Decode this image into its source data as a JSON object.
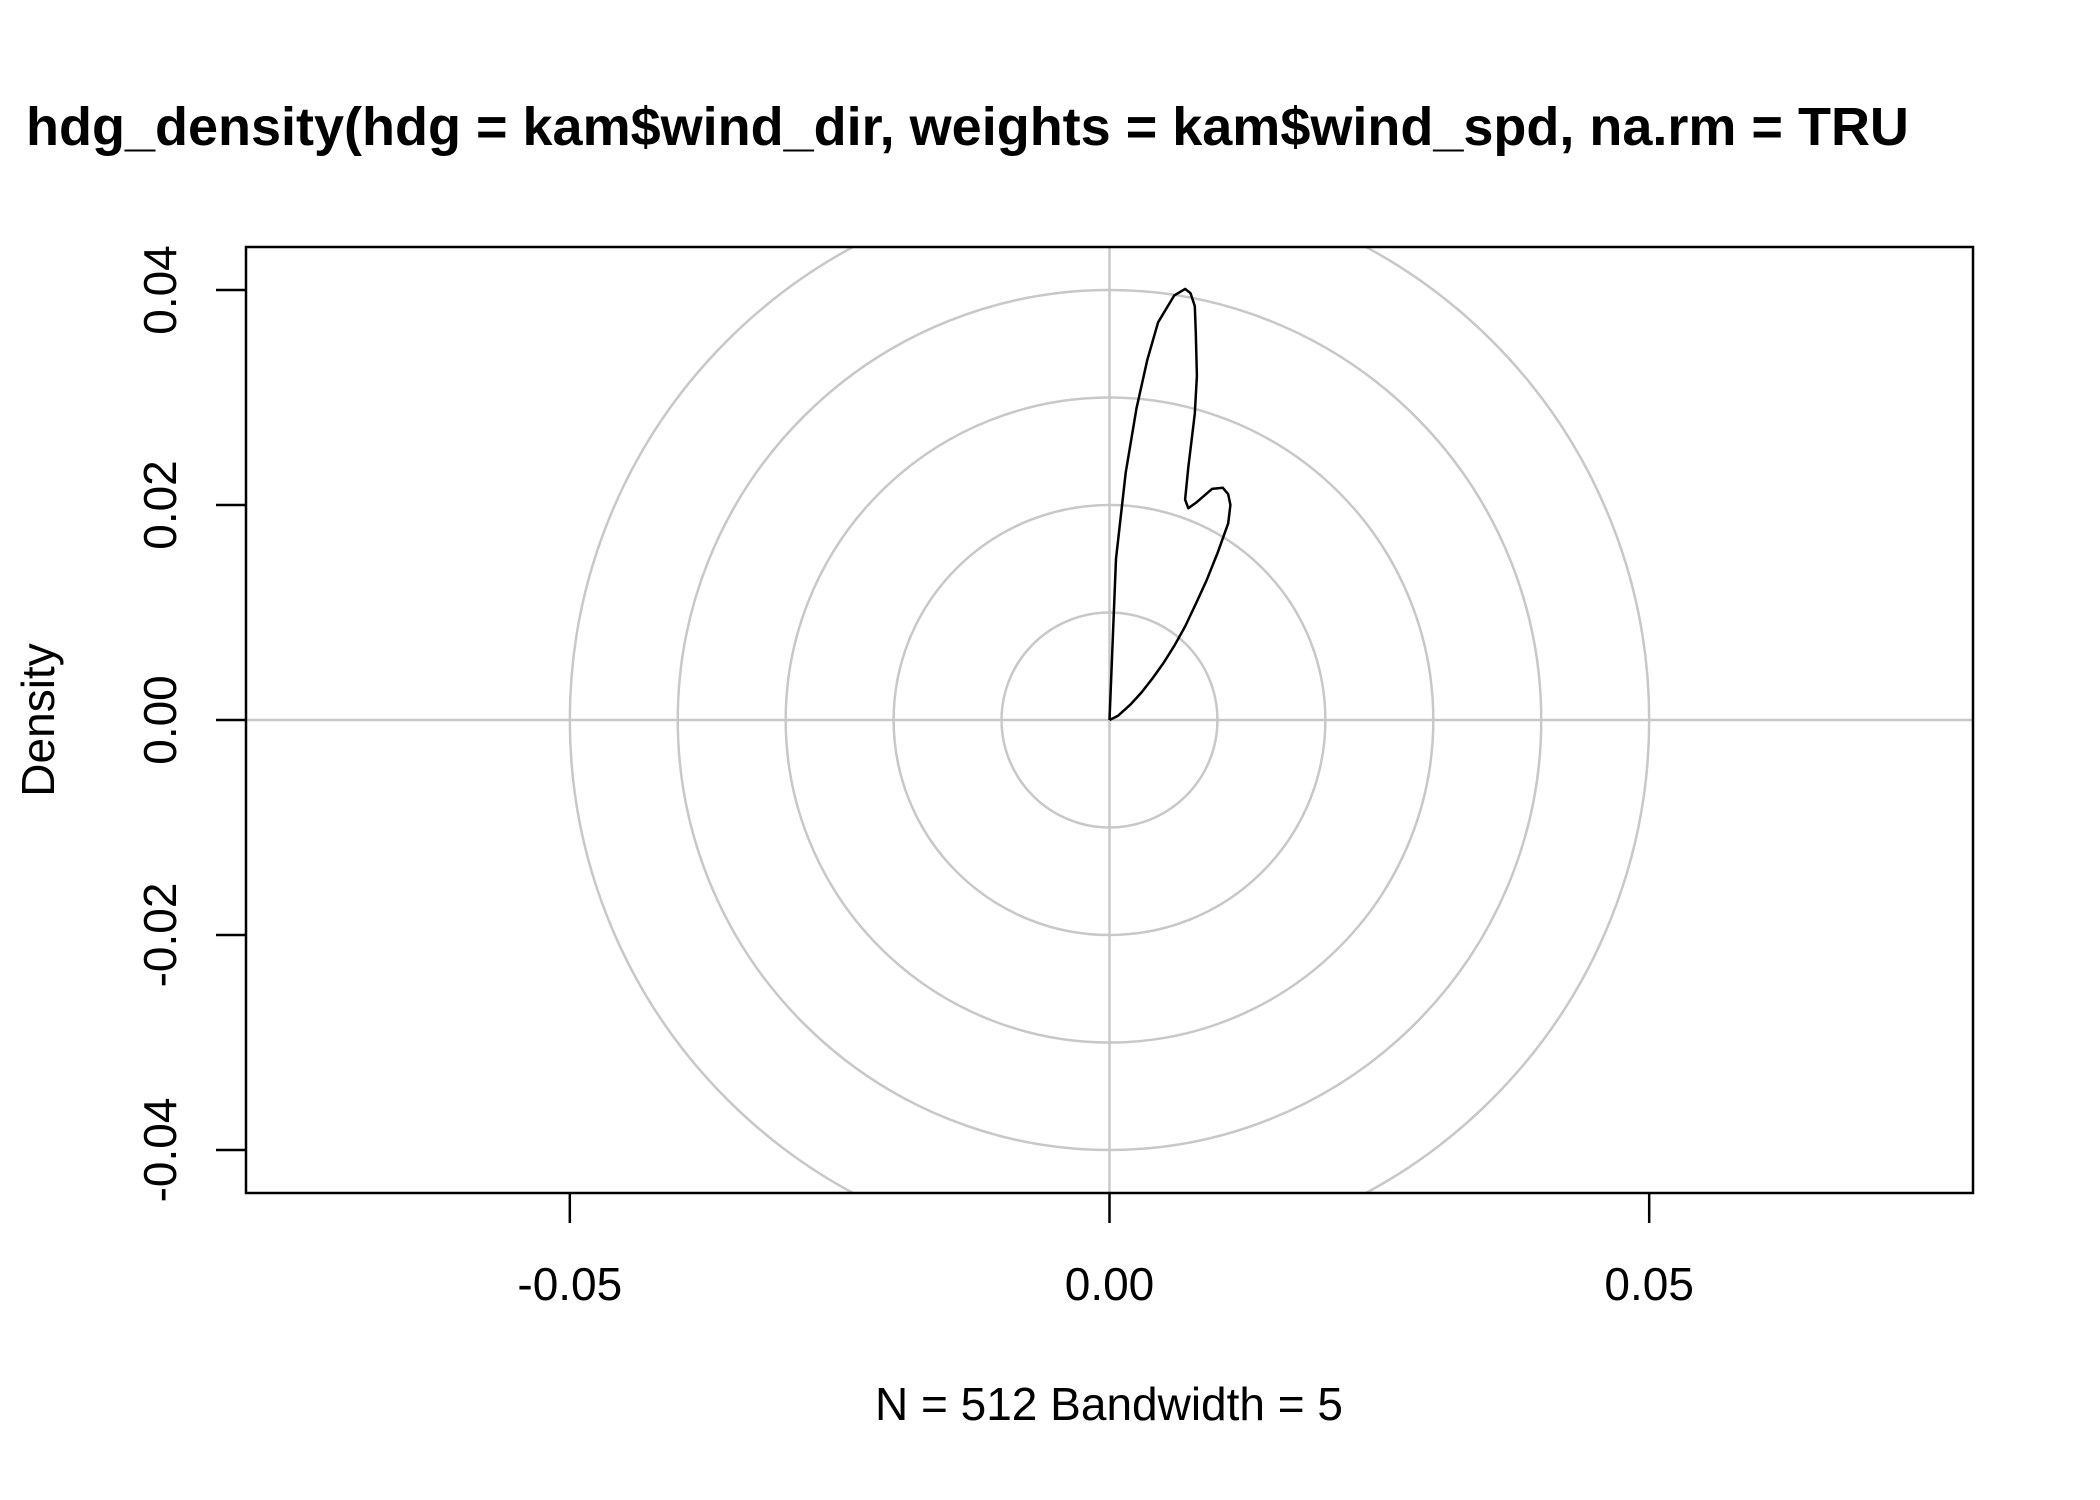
{
  "chart_data": {
    "type": "line",
    "title": "hdg_density(hdg = kam$wind_dir, weights = kam$wind_spd, na.rm = TRU",
    "xlabel": "N = 512 Bandwidth = 5",
    "ylabel": "Density",
    "xlim": [
      -0.08,
      0.08
    ],
    "ylim": [
      -0.044,
      0.044
    ],
    "x_ticks": [
      {
        "value": -0.05,
        "label": "-0.05"
      },
      {
        "value": 0.0,
        "label": "0.00"
      },
      {
        "value": 0.05,
        "label": "0.05"
      }
    ],
    "y_ticks": [
      {
        "value": -0.04,
        "label": "-0.04"
      },
      {
        "value": -0.02,
        "label": "-0.02"
      },
      {
        "value": 0.0,
        "label": "0.00"
      },
      {
        "value": 0.02,
        "label": "0.02"
      },
      {
        "value": 0.04,
        "label": "0.04"
      }
    ],
    "grid": {
      "rings": [
        0.01,
        0.02,
        0.03,
        0.04,
        0.05
      ],
      "crosshair": true,
      "color": "#c8c8c8"
    },
    "series": [
      {
        "color": "#000000",
        "x": [
          0.0,
          0.0006,
          0.0015,
          0.0025,
          0.0035,
          0.0045,
          0.006,
          0.007,
          0.0075,
          0.0079,
          0.008,
          0.0081,
          0.0079,
          0.0073,
          0.007,
          0.0073,
          0.008,
          0.0095,
          0.0105,
          0.011,
          0.0112,
          0.011,
          0.01,
          0.009,
          0.008,
          0.007,
          0.006,
          0.005,
          0.004,
          0.003,
          0.002,
          0.0008,
          0.0
        ],
        "y": [
          0.0,
          0.015,
          0.023,
          0.029,
          0.0335,
          0.037,
          0.0395,
          0.0401,
          0.0397,
          0.0385,
          0.036,
          0.032,
          0.0285,
          0.0235,
          0.0205,
          0.0197,
          0.0202,
          0.0215,
          0.0216,
          0.021,
          0.02,
          0.0183,
          0.0155,
          0.013,
          0.0108,
          0.0087,
          0.0069,
          0.0053,
          0.0039,
          0.0026,
          0.0015,
          0.0004,
          0.0
        ]
      }
    ]
  }
}
